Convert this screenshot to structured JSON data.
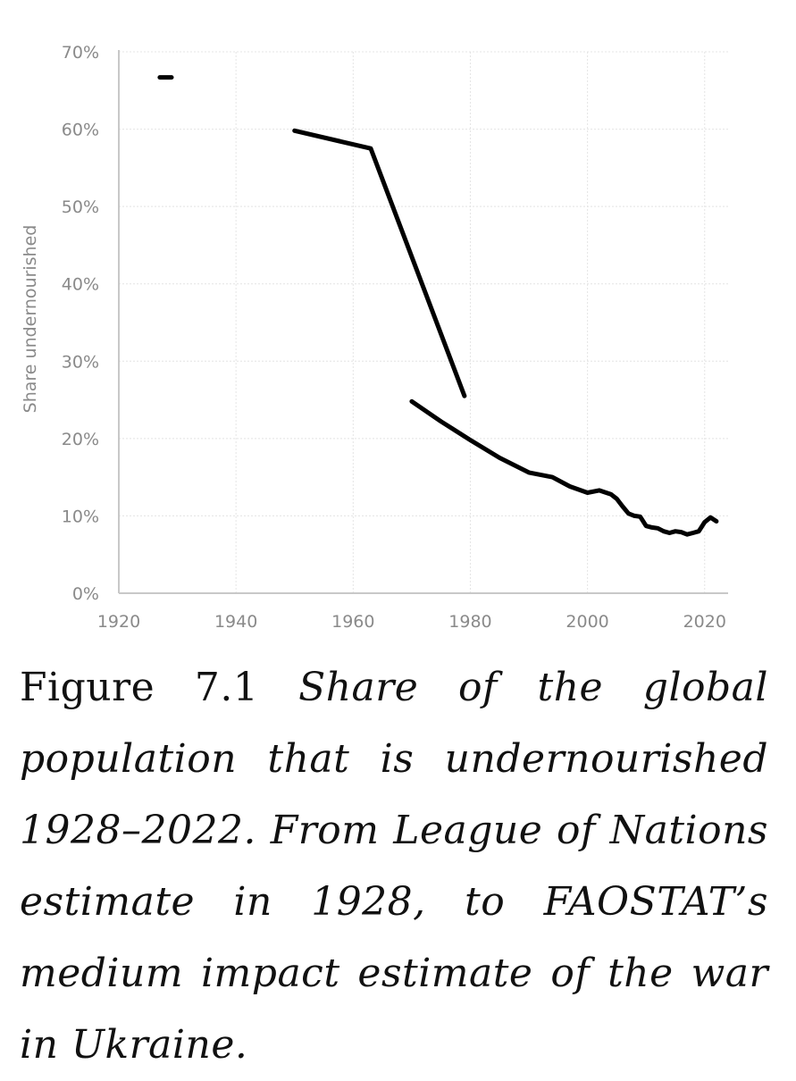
{
  "caption": {
    "figure_label": "Figure 7.1",
    "text": "Share of the global population that is undernourished 1928–2022. From League of Nations estimate in 1928, to FAOSTAT’s medium impact estimate of the war in Ukraine."
  },
  "chart_data": {
    "type": "line",
    "ylabel": "Share undernourished",
    "xlim": [
      1920,
      2024
    ],
    "ylim": [
      0,
      70
    ],
    "x_ticks": [
      1920,
      1940,
      1960,
      1980,
      2000,
      2020
    ],
    "y_ticks": [
      "0%",
      "10%",
      "20%",
      "30%",
      "40%",
      "50%",
      "60%",
      "70%"
    ],
    "grid": true,
    "line_color": "#000000",
    "series": [
      {
        "points": [
          [
            1927,
            66.7
          ],
          [
            1929,
            66.7
          ]
        ]
      },
      {
        "points": [
          [
            1950,
            59.8
          ],
          [
            1963,
            57.5
          ],
          [
            1979,
            25.5
          ]
        ]
      },
      {
        "points": [
          [
            1970,
            24.8
          ],
          [
            1975,
            22.2
          ],
          [
            1980,
            19.8
          ],
          [
            1985,
            17.5
          ],
          [
            1990,
            15.6
          ],
          [
            1994,
            15.0
          ],
          [
            1997,
            13.8
          ],
          [
            2000,
            13.0
          ],
          [
            2002,
            13.3
          ],
          [
            2004,
            12.8
          ],
          [
            2005,
            12.2
          ],
          [
            2006,
            11.2
          ],
          [
            2007,
            10.3
          ],
          [
            2008,
            10.0
          ],
          [
            2009,
            9.9
          ],
          [
            2010,
            8.7
          ],
          [
            2011,
            8.5
          ],
          [
            2012,
            8.4
          ],
          [
            2013,
            8.0
          ],
          [
            2014,
            7.8
          ],
          [
            2015,
            8.0
          ],
          [
            2016,
            7.9
          ],
          [
            2017,
            7.6
          ],
          [
            2018,
            7.8
          ],
          [
            2019,
            8.0
          ],
          [
            2020,
            9.2
          ],
          [
            2021,
            9.8
          ],
          [
            2022,
            9.3
          ]
        ]
      }
    ]
  }
}
